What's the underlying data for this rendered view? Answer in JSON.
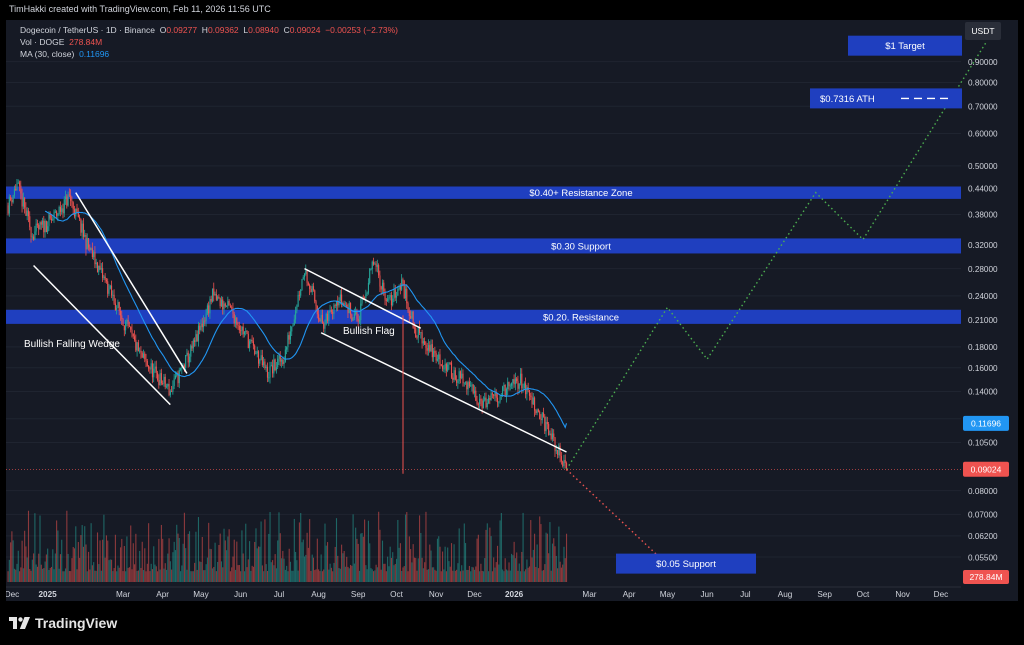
{
  "header": {
    "credit": "TimHakki created with TradingView.com, Feb 11, 2026 11:56 UTC"
  },
  "legend": {
    "symbol": "Dogecoin / TetherUS · 1D · Binance",
    "open_label": "O",
    "open": "0.09277",
    "high_label": "H",
    "high": "0.09362",
    "low_label": "L",
    "low": "0.08940",
    "close_label": "C",
    "close": "0.09024",
    "change": "−0.00253 (−2.73%)",
    "vol_label": "Vol · DOGE",
    "vol": "278.84M",
    "ma_label": "MA (30, close)",
    "ma": "0.11696"
  },
  "footer": {
    "brand": "TradingView"
  },
  "colors": {
    "background": "#161a25",
    "up": "#26a69a",
    "down": "#ef5350",
    "ma": "#2196f3",
    "zone": "#1f3fbf",
    "projection": "#4caf50",
    "support_projection": "#ef5350",
    "trendline": "#ffffff"
  },
  "chart_data": {
    "type": "candlestick",
    "title": "Dogecoin / TetherUS · 1D · Binance",
    "currency": "USDT",
    "y_scale": "log",
    "ylim": [
      0.052,
      1.0
    ],
    "y_ticks": [
      "0.90000",
      "0.80000",
      "0.70000",
      "0.60000",
      "0.50000",
      "0.44000",
      "0.38000",
      "0.32000",
      "0.28000",
      "0.24000",
      "0.21000",
      "0.18000",
      "0.16000",
      "0.14000",
      "0.12000",
      "0.10500",
      "0.08000",
      "0.07000",
      "0.06200",
      "0.05500"
    ],
    "x_ticks": [
      "Dec",
      "2025",
      "Mar",
      "Apr",
      "May",
      "Jun",
      "Jul",
      "Aug",
      "Sep",
      "Oct",
      "Nov",
      "Dec",
      "2026",
      "Mar",
      "Apr",
      "May",
      "Jun",
      "Jul",
      "Aug",
      "Sep",
      "Oct",
      "Nov",
      "Dec"
    ],
    "price_anchors": [
      {
        "date": "2024-12-01",
        "price": 0.4
      },
      {
        "date": "2024-12-08",
        "price": 0.45
      },
      {
        "date": "2024-12-20",
        "price": 0.34
      },
      {
        "date": "2025-01-05",
        "price": 0.37
      },
      {
        "date": "2025-01-18",
        "price": 0.42
      },
      {
        "date": "2025-02-01",
        "price": 0.32
      },
      {
        "date": "2025-02-15",
        "price": 0.26
      },
      {
        "date": "2025-03-01",
        "price": 0.21
      },
      {
        "date": "2025-03-15",
        "price": 0.17
      },
      {
        "date": "2025-04-07",
        "price": 0.14
      },
      {
        "date": "2025-04-25",
        "price": 0.18
      },
      {
        "date": "2025-05-10",
        "price": 0.24
      },
      {
        "date": "2025-05-25",
        "price": 0.22
      },
      {
        "date": "2025-06-10",
        "price": 0.18
      },
      {
        "date": "2025-06-22",
        "price": 0.155
      },
      {
        "date": "2025-07-05",
        "price": 0.17
      },
      {
        "date": "2025-07-21",
        "price": 0.28
      },
      {
        "date": "2025-08-05",
        "price": 0.2
      },
      {
        "date": "2025-08-15",
        "price": 0.24
      },
      {
        "date": "2025-09-01",
        "price": 0.21
      },
      {
        "date": "2025-09-13",
        "price": 0.29
      },
      {
        "date": "2025-09-25",
        "price": 0.23
      },
      {
        "date": "2025-10-05",
        "price": 0.26
      },
      {
        "date": "2025-10-15",
        "price": 0.2
      },
      {
        "date": "2025-11-01",
        "price": 0.17
      },
      {
        "date": "2025-11-20",
        "price": 0.15
      },
      {
        "date": "2025-12-10",
        "price": 0.13
      },
      {
        "date": "2026-01-06",
        "price": 0.15
      },
      {
        "date": "2026-01-20",
        "price": 0.125
      },
      {
        "date": "2026-02-01",
        "price": 0.105
      },
      {
        "date": "2026-02-11",
        "price": 0.0902
      }
    ],
    "ma30_last": 0.11696,
    "last_price": 0.09024,
    "last_volume": "278.84M",
    "zones": [
      {
        "label": "$0.40+ Resistance Zone",
        "low": 0.415,
        "high": 0.445
      },
      {
        "label": "$0.30 Support",
        "low": 0.305,
        "high": 0.332
      },
      {
        "label": "$0.20. Resistance",
        "low": 0.205,
        "high": 0.222
      }
    ],
    "targets": [
      {
        "label": "$1 Target",
        "price": 0.985
      },
      {
        "label": "$0.7316 ATH",
        "price": 0.7316
      },
      {
        "label": "$0.05 Support",
        "price": 0.053
      }
    ],
    "projection_up": [
      {
        "date": "2026-02-11",
        "price": 0.0902
      },
      {
        "date": "2026-05-01",
        "price": 0.225
      },
      {
        "date": "2026-06-01",
        "price": 0.168
      },
      {
        "date": "2026-08-25",
        "price": 0.43
      },
      {
        "date": "2026-10-01",
        "price": 0.33
      },
      {
        "date": "2027-01-05",
        "price": 1.0
      }
    ],
    "projection_down": [
      {
        "date": "2026-02-11",
        "price": 0.0902
      },
      {
        "date": "2026-04-30",
        "price": 0.053
      }
    ],
    "annotations": [
      "Bullish Falling Wedge",
      "Bullish Flag"
    ]
  }
}
